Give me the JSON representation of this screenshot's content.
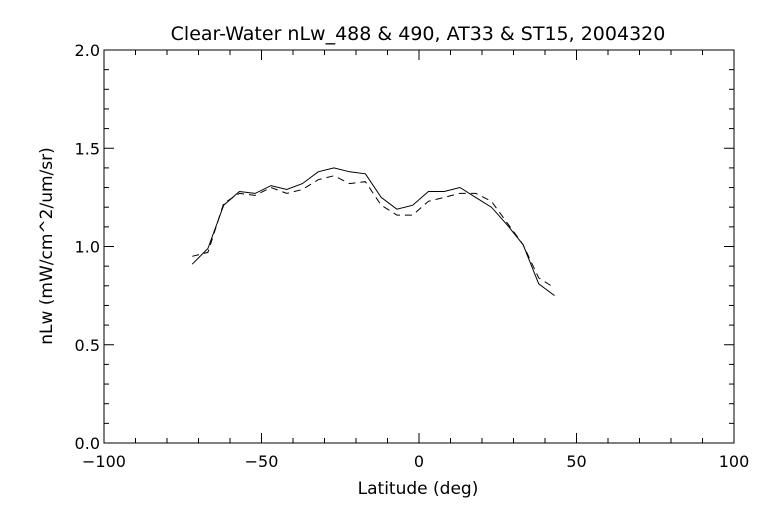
{
  "chart_data": {
    "type": "line",
    "title": "Clear-Water nLw_488 & 490, AT33 & ST15, 2004320",
    "xlabel": "Latitude (deg)",
    "ylabel": "nLw (mW/cm^2/um/sr)",
    "xlim": [
      -100,
      100
    ],
    "ylim": [
      0.0,
      2.0
    ],
    "xticks": [
      -100,
      -50,
      0,
      50,
      100
    ],
    "xtick_labels": [
      "−100",
      "−50",
      "0",
      "50",
      "100"
    ],
    "yticks": [
      0.0,
      0.5,
      1.0,
      1.5,
      2.0
    ],
    "ytick_labels": [
      "0.0",
      "0.5",
      "1.0",
      "1.5",
      "2.0"
    ],
    "grid": false,
    "series": [
      {
        "style": "solid",
        "x": [
          -72,
          -67,
          -62,
          -57,
          -52,
          -47,
          -42,
          -37,
          -32,
          -27,
          -22,
          -17,
          -12,
          -7,
          -2,
          3,
          8,
          13,
          18,
          23,
          28,
          33,
          38,
          43
        ],
        "y": [
          0.91,
          0.99,
          1.21,
          1.28,
          1.27,
          1.31,
          1.29,
          1.32,
          1.38,
          1.4,
          1.38,
          1.37,
          1.25,
          1.19,
          1.21,
          1.28,
          1.28,
          1.3,
          1.25,
          1.2,
          1.11,
          1.01,
          0.81,
          0.75
        ]
      },
      {
        "style": "dashed",
        "x": [
          -72,
          -67,
          -62,
          -57,
          -52,
          -47,
          -42,
          -37,
          -32,
          -27,
          -22,
          -17,
          -12,
          -7,
          -2,
          3,
          8,
          13,
          18,
          23,
          28,
          33,
          38,
          43
        ],
        "y": [
          0.95,
          0.97,
          1.22,
          1.27,
          1.26,
          1.3,
          1.27,
          1.29,
          1.34,
          1.36,
          1.32,
          1.33,
          1.21,
          1.16,
          1.16,
          1.23,
          1.25,
          1.27,
          1.27,
          1.23,
          1.12,
          1.01,
          0.84,
          0.79
        ]
      }
    ]
  }
}
